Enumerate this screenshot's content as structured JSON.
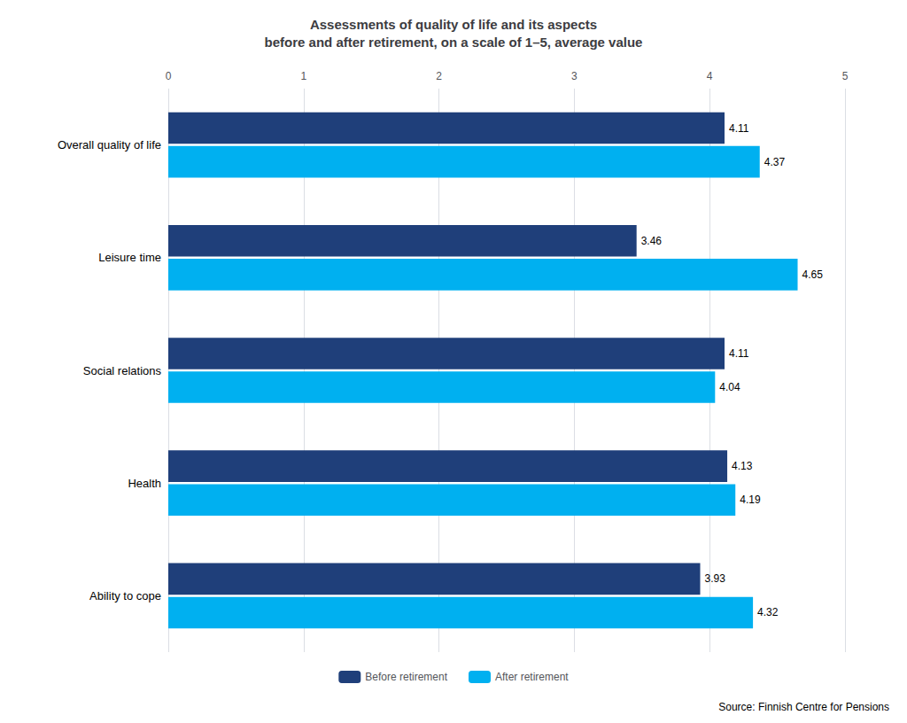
{
  "chart_data": {
    "type": "bar",
    "orientation": "horizontal",
    "title": "Assessments of quality of life and its aspects\nbefore and after retirement, on a scale of 1–5, average value",
    "categories": [
      "Overall quality of life",
      "Leisure time",
      "Social relations",
      "Health",
      "Ability to cope"
    ],
    "series": [
      {
        "name": "Before retirement",
        "color": "#1f3f7a",
        "values": [
          4.11,
          3.46,
          4.11,
          4.13,
          3.93
        ]
      },
      {
        "name": "After retirement",
        "color": "#00b0f0",
        "values": [
          4.37,
          4.65,
          4.04,
          4.19,
          4.32
        ]
      }
    ],
    "xlim": [
      0,
      5
    ],
    "xticks": [
      0,
      1,
      2,
      3,
      4,
      5
    ],
    "grid": true,
    "legend": "bottom",
    "data_labels": true,
    "annotations": [
      "Source: Finnish Centre for Pensions"
    ]
  }
}
